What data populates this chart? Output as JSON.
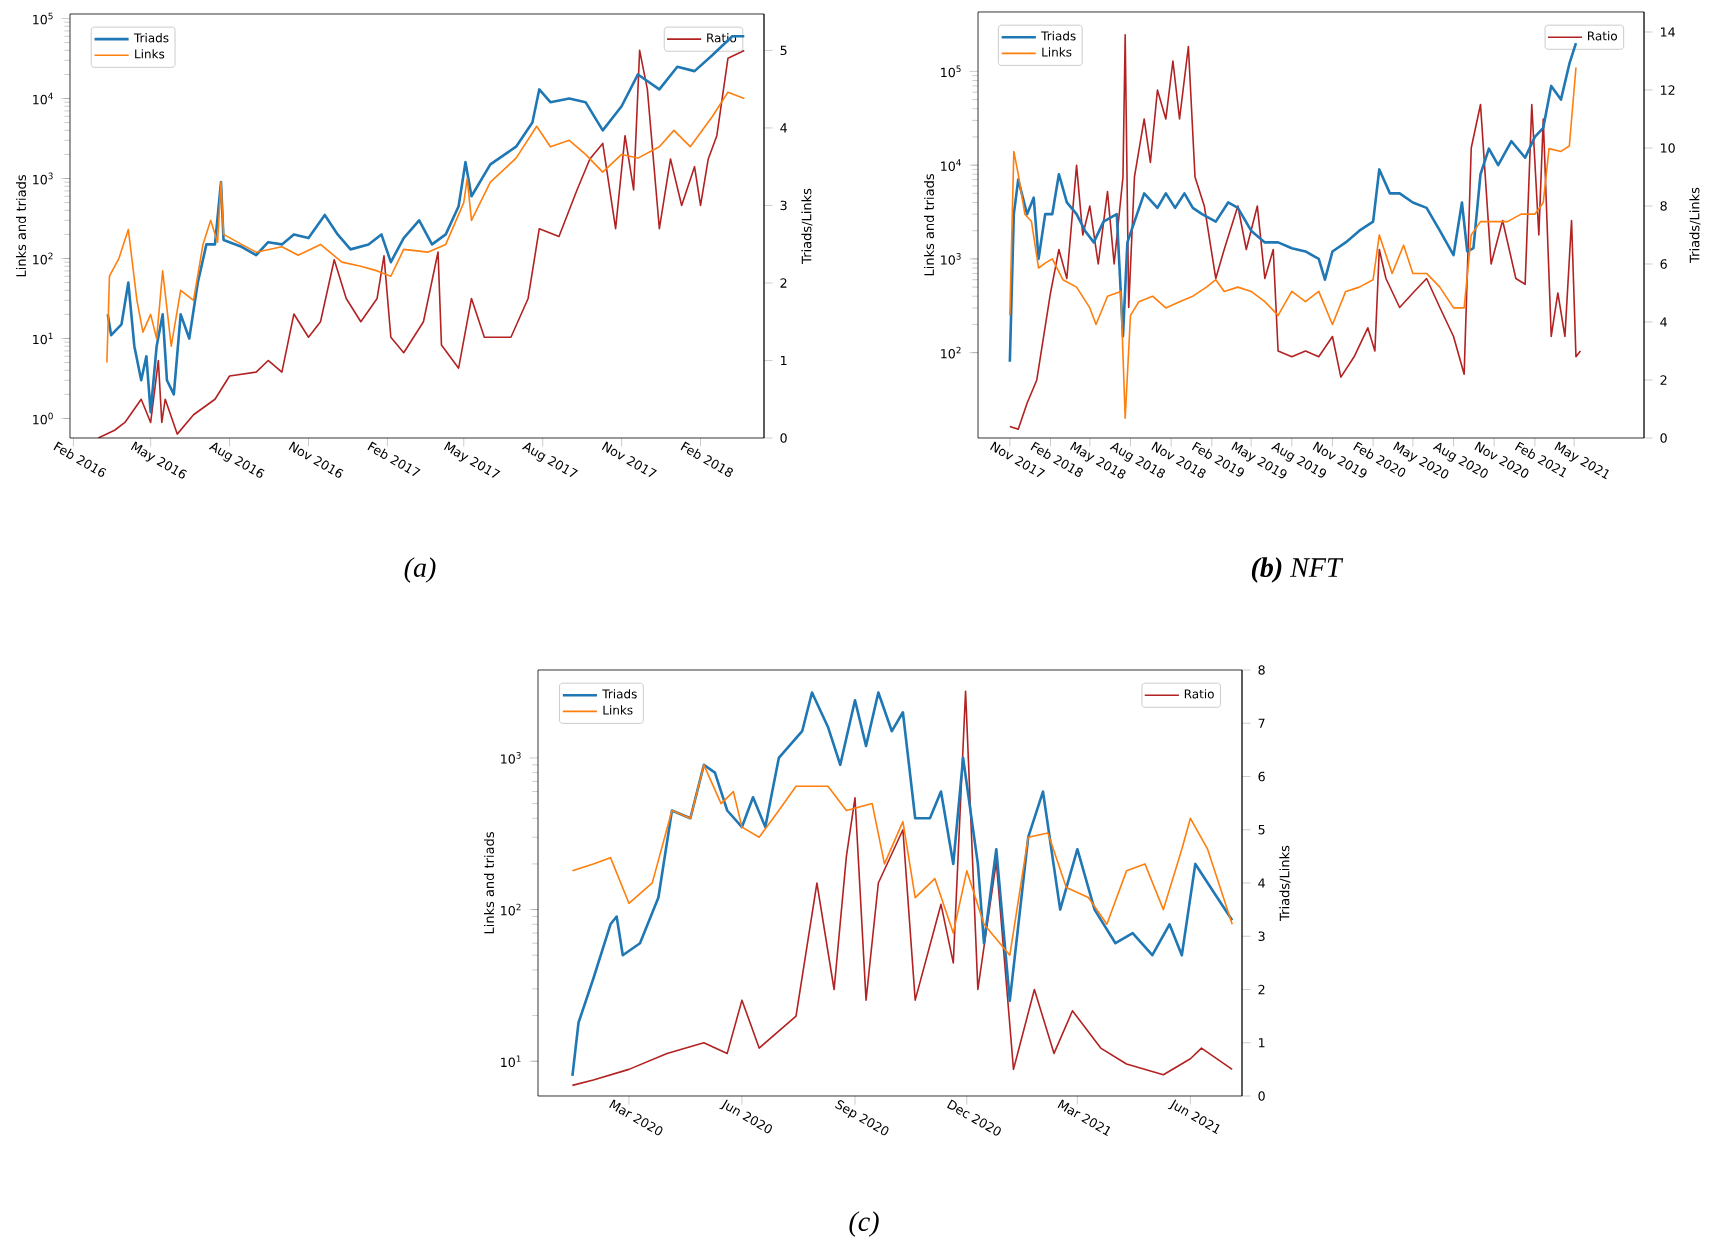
{
  "chart_data": [
    {
      "type": "line",
      "title": "(a)",
      "ylabel": "Links and triads",
      "y2label": "Triads/Links",
      "log": "y",
      "legend": "top left",
      "xlim": [
        "2016-01-28",
        "2018-04-16"
      ],
      "ylim": [
        0.57,
        114000
      ],
      "y2lim": [
        0,
        5.47
      ],
      "xticks": [
        {
          "value": "2016-02-01",
          "label": "Feb 2016"
        },
        {
          "value": "2016-05-01",
          "label": "May 2016"
        },
        {
          "value": "2016-08-01",
          "label": "Aug 2016"
        },
        {
          "value": "2016-11-01",
          "label": "Nov 2016"
        },
        {
          "value": "2017-02-01",
          "label": "Feb 2017"
        },
        {
          "value": "2017-05-01",
          "label": "May 2017"
        },
        {
          "value": "2017-08-01",
          "label": "Aug 2017"
        },
        {
          "value": "2017-11-01",
          "label": "Nov 2017"
        },
        {
          "value": "2018-02-01",
          "label": "Feb 2018"
        }
      ],
      "yticks": [
        {
          "value": 1,
          "label": "10$^{0}$"
        },
        {
          "value": 10,
          "label": "10$^{1}$"
        },
        {
          "value": 100,
          "label": "10$^{2}$"
        },
        {
          "value": 1000,
          "label": "10$^{3}$"
        },
        {
          "value": 10000,
          "label": "10$^{4}$"
        },
        {
          "value": 100000,
          "label": "10$^{5}$"
        }
      ],
      "y2ticks": [
        0,
        1,
        2,
        3,
        4,
        5
      ],
      "series": [
        {
          "name": "Triads",
          "color": "#1f77b4",
          "x": [
            "2016-03-12",
            "2016-03-16",
            "2016-03-28",
            "2016-04-05",
            "2016-04-12",
            "2016-04-20",
            "2016-04-26",
            "2016-05-01",
            "2016-05-08",
            "2016-05-15",
            "2016-05-20",
            "2016-05-28",
            "2016-06-05",
            "2016-06-15",
            "2016-06-25",
            "2016-07-05",
            "2016-07-15",
            "2016-07-22",
            "2016-07-25",
            "2016-08-15",
            "2016-09-01",
            "2016-09-15",
            "2016-10-01",
            "2016-10-15",
            "2016-11-01",
            "2016-11-20",
            "2016-12-05",
            "2016-12-20",
            "2017-01-10",
            "2017-01-25",
            "2017-02-05",
            "2017-02-20",
            "2017-03-10",
            "2017-03-25",
            "2017-04-10",
            "2017-04-25",
            "2017-05-03",
            "2017-05-10",
            "2017-06-01",
            "2017-07-01",
            "2017-07-20",
            "2017-07-28",
            "2017-08-10",
            "2017-09-01",
            "2017-09-20",
            "2017-10-10",
            "2017-11-01",
            "2017-11-20",
            "2017-12-15",
            "2018-01-05",
            "2018-01-25",
            "2018-02-15",
            "2018-03-10",
            "2018-03-24"
          ],
          "values": [
            20,
            11,
            15,
            50,
            8,
            3,
            6,
            1.2,
            8,
            20,
            3,
            2,
            20,
            10,
            50,
            150,
            150,
            900,
            170,
            140,
            110,
            160,
            150,
            200,
            180,
            350,
            200,
            130,
            150,
            200,
            90,
            180,
            300,
            150,
            200,
            450,
            1600,
            600,
            1500,
            2500,
            5000,
            13000,
            9000,
            10000,
            9000,
            4000,
            8000,
            20000,
            13000,
            25000,
            22000,
            35000,
            60000,
            60000
          ]
        },
        {
          "name": "Links",
          "color": "#ff7f0e",
          "x": [
            "2016-03-11",
            "2016-03-14",
            "2016-03-25",
            "2016-04-05",
            "2016-04-15",
            "2016-04-22",
            "2016-05-01",
            "2016-05-08",
            "2016-05-15",
            "2016-05-25",
            "2016-06-05",
            "2016-06-20",
            "2016-07-01",
            "2016-07-10",
            "2016-07-18",
            "2016-07-22",
            "2016-07-25",
            "2016-08-15",
            "2016-09-01",
            "2016-10-01",
            "2016-10-20",
            "2016-11-15",
            "2016-12-10",
            "2017-01-01",
            "2017-01-20",
            "2017-02-05",
            "2017-02-20",
            "2017-03-20",
            "2017-04-10",
            "2017-05-01",
            "2017-05-05",
            "2017-05-10",
            "2017-06-01",
            "2017-07-01",
            "2017-07-25",
            "2017-08-10",
            "2017-09-01",
            "2017-09-20",
            "2017-10-10",
            "2017-11-01",
            "2017-11-20",
            "2017-12-15",
            "2018-01-01",
            "2018-01-20",
            "2018-02-15",
            "2018-03-05",
            "2018-03-24"
          ],
          "values": [
            5,
            60,
            100,
            230,
            30,
            12,
            20,
            10,
            70,
            8,
            40,
            30,
            150,
            300,
            160,
            900,
            200,
            150,
            120,
            140,
            110,
            150,
            90,
            80,
            70,
            60,
            130,
            120,
            150,
            500,
            1000,
            300,
            900,
            1800,
            4500,
            2500,
            3000,
            2000,
            1200,
            2000,
            1800,
            2500,
            4000,
            2500,
            6000,
            12000,
            10000
          ]
        },
        {
          "name": "Ratio",
          "color": "#b22222",
          "axis": "y2",
          "x": [
            "2016-03-01",
            "2016-03-20",
            "2016-04-01",
            "2016-04-20",
            "2016-05-01",
            "2016-05-10",
            "2016-05-14",
            "2016-05-18",
            "2016-06-01",
            "2016-06-20",
            "2016-07-15",
            "2016-08-01",
            "2016-09-01",
            "2016-09-15",
            "2016-10-01",
            "2016-10-15",
            "2016-11-01",
            "2016-11-15",
            "2016-12-01",
            "2016-12-15",
            "2017-01-01",
            "2017-01-20",
            "2017-01-28",
            "2017-02-05",
            "2017-02-20",
            "2017-03-15",
            "2017-04-01",
            "2017-04-05",
            "2017-04-25",
            "2017-05-10",
            "2017-05-25",
            "2017-06-25",
            "2017-07-15",
            "2017-07-28",
            "2017-08-20",
            "2017-09-10",
            "2017-09-25",
            "2017-10-10",
            "2017-10-25",
            "2017-11-05",
            "2017-11-15",
            "2017-11-22",
            "2017-12-01",
            "2017-12-15",
            "2017-12-28",
            "2018-01-10",
            "2018-01-25",
            "2018-02-01",
            "2018-02-10",
            "2018-02-20",
            "2018-03-05",
            "2018-03-24"
          ],
          "values": [
            0,
            0.1,
            0.2,
            0.5,
            0.2,
            1.0,
            0.2,
            0.5,
            0.05,
            0.3,
            0.5,
            0.8,
            0.85,
            1.0,
            0.85,
            1.6,
            1.3,
            1.5,
            2.3,
            1.8,
            1.5,
            1.8,
            2.35,
            1.3,
            1.1,
            1.5,
            2.4,
            1.2,
            0.9,
            1.8,
            1.3,
            1.3,
            1.8,
            2.7,
            2.6,
            3.2,
            3.6,
            3.8,
            2.7,
            3.9,
            3.2,
            5.0,
            4.5,
            2.7,
            3.6,
            3.0,
            3.5,
            3.0,
            3.6,
            3.9,
            4.9,
            5.0
          ]
        }
      ]
    },
    {
      "type": "line",
      "title": "**(b)** NFT",
      "ylabel": "Links and triads",
      "y2label": "Triads/Links",
      "log": "y",
      "legend": "top left",
      "xlim": [
        "2017-08-21",
        "2021-10-06"
      ],
      "ylim": [
        12.3,
        430000
      ],
      "y2lim": [
        0,
        14.69
      ],
      "xticks": [
        {
          "value": "2017-11-01",
          "label": "Nov 2017"
        },
        {
          "value": "2018-02-01",
          "label": "Feb 2018"
        },
        {
          "value": "2018-05-01",
          "label": "May 2018"
        },
        {
          "value": "2018-08-01",
          "label": "Aug 2018"
        },
        {
          "value": "2018-11-01",
          "label": "Nov 2018"
        },
        {
          "value": "2019-02-01",
          "label": "Feb 2019"
        },
        {
          "value": "2019-05-01",
          "label": "May 2019"
        },
        {
          "value": "2019-08-01",
          "label": "Aug 2019"
        },
        {
          "value": "2019-11-01",
          "label": "Nov 2019"
        },
        {
          "value": "2020-02-01",
          "label": "Feb 2020"
        },
        {
          "value": "2020-05-01",
          "label": "May 2020"
        },
        {
          "value": "2020-08-01",
          "label": "Aug 2020"
        },
        {
          "value": "2020-11-01",
          "label": "Nov 2020"
        },
        {
          "value": "2021-02-01",
          "label": "Feb 2021"
        },
        {
          "value": "2021-05-01",
          "label": "May 2021"
        }
      ],
      "yticks": [
        {
          "value": 100,
          "label": "10$^{2}$"
        },
        {
          "value": 1000,
          "label": "10$^{3}$"
        },
        {
          "value": 10000,
          "label": "10$^{4}$"
        },
        {
          "value": 100000,
          "label": "10$^{5}$"
        }
      ],
      "y2ticks": [
        0,
        2,
        4,
        6,
        8,
        10,
        12,
        14
      ],
      "series": [
        {
          "name": "Triads",
          "color": "#1f77b4",
          "x": [
            "2017-11-01",
            "2017-11-10",
            "2017-11-20",
            "2017-12-10",
            "2017-12-25",
            "2018-01-05",
            "2018-01-20",
            "2018-02-05",
            "2018-02-20",
            "2018-03-10",
            "2018-04-01",
            "2018-04-20",
            "2018-05-10",
            "2018-06-01",
            "2018-07-01",
            "2018-07-15",
            "2018-07-25",
            "2018-08-10",
            "2018-09-01",
            "2018-10-01",
            "2018-10-20",
            "2018-11-10",
            "2018-12-01",
            "2018-12-20",
            "2019-01-10",
            "2019-02-10",
            "2019-03-10",
            "2019-04-01",
            "2019-05-01",
            "2019-06-01",
            "2019-07-01",
            "2019-08-01",
            "2019-09-01",
            "2019-10-01",
            "2019-10-15",
            "2019-11-01",
            "2019-12-01",
            "2020-01-01",
            "2020-02-01",
            "2020-02-15",
            "2020-03-10",
            "2020-04-01",
            "2020-05-01",
            "2020-06-01",
            "2020-07-01",
            "2020-08-01",
            "2020-08-20",
            "2020-09-01",
            "2020-09-15",
            "2020-10-01",
            "2020-10-20",
            "2020-11-10",
            "2020-12-10",
            "2021-01-10",
            "2021-02-01",
            "2021-02-20",
            "2021-03-10",
            "2021-04-01",
            "2021-04-20",
            "2021-05-05"
          ],
          "values": [
            80,
            3000,
            7000,
            3000,
            4500,
            1000,
            3000,
            3000,
            8000,
            4000,
            3000,
            2000,
            1500,
            2500,
            3000,
            150,
            1500,
            2500,
            5000,
            3500,
            5000,
            3500,
            5000,
            3500,
            3000,
            2500,
            4000,
            3500,
            2000,
            1500,
            1500,
            1300,
            1200,
            1000,
            600,
            1200,
            1500,
            2000,
            2500,
            9000,
            5000,
            5000,
            4000,
            3500,
            2000,
            1100,
            4000,
            1200,
            1300,
            8000,
            15000,
            10000,
            18000,
            12000,
            20000,
            25000,
            70000,
            50000,
            120000,
            200000
          ]
        },
        {
          "name": "Links",
          "color": "#ff7f0e",
          "x": [
            "2017-11-01",
            "2017-11-10",
            "2017-11-20",
            "2017-12-05",
            "2017-12-20",
            "2018-01-05",
            "2018-01-20",
            "2018-02-05",
            "2018-03-01",
            "2018-04-01",
            "2018-05-01",
            "2018-05-15",
            "2018-06-10",
            "2018-07-10",
            "2018-07-20",
            "2018-08-01",
            "2018-08-20",
            "2018-09-20",
            "2018-10-20",
            "2018-11-20",
            "2018-12-20",
            "2019-01-20",
            "2019-02-10",
            "2019-03-01",
            "2019-04-01",
            "2019-05-01",
            "2019-06-01",
            "2019-07-01",
            "2019-08-01",
            "2019-09-01",
            "2019-10-01",
            "2019-11-01",
            "2019-12-01",
            "2020-01-01",
            "2020-02-01",
            "2020-02-15",
            "2020-03-15",
            "2020-04-10",
            "2020-05-01",
            "2020-06-01",
            "2020-07-01",
            "2020-08-01",
            "2020-08-25",
            "2020-09-10",
            "2020-10-01",
            "2020-11-01",
            "2020-12-01",
            "2021-01-01",
            "2021-02-01",
            "2021-02-20",
            "2021-03-05",
            "2021-04-01",
            "2021-04-20",
            "2021-05-05"
          ],
          "values": [
            250,
            14000,
            8000,
            3000,
            2500,
            800,
            900,
            1000,
            600,
            500,
            300,
            200,
            400,
            450,
            20,
            250,
            350,
            400,
            300,
            350,
            400,
            500,
            600,
            450,
            500,
            450,
            350,
            250,
            450,
            350,
            450,
            200,
            450,
            500,
            600,
            1800,
            700,
            1400,
            700,
            700,
            500,
            300,
            300,
            1800,
            2500,
            2500,
            2500,
            3000,
            3000,
            4000,
            15000,
            14000,
            16000,
            110000
          ]
        },
        {
          "name": "Ratio",
          "color": "#b22222",
          "axis": "y2",
          "x": [
            "2017-11-01",
            "2017-11-20",
            "2017-12-10",
            "2018-01-01",
            "2018-02-01",
            "2018-02-20",
            "2018-03-10",
            "2018-04-01",
            "2018-04-15",
            "2018-05-01",
            "2018-05-20",
            "2018-06-10",
            "2018-06-25",
            "2018-07-15",
            "2018-07-20",
            "2018-07-28",
            "2018-08-10",
            "2018-09-01",
            "2018-09-15",
            "2018-10-01",
            "2018-10-20",
            "2018-11-05",
            "2018-11-20",
            "2018-12-10",
            "2018-12-25",
            "2019-01-15",
            "2019-02-10",
            "2019-03-01",
            "2019-04-01",
            "2019-04-20",
            "2019-05-15",
            "2019-06-01",
            "2019-06-20",
            "2019-07-01",
            "2019-08-01",
            "2019-09-01",
            "2019-10-01",
            "2019-11-01",
            "2019-11-20",
            "2019-12-20",
            "2020-01-20",
            "2020-02-05",
            "2020-02-15",
            "2020-03-01",
            "2020-04-01",
            "2020-05-01",
            "2020-06-01",
            "2020-07-01",
            "2020-08-01",
            "2020-08-25",
            "2020-09-10",
            "2020-10-01",
            "2020-10-25",
            "2020-11-20",
            "2020-12-20",
            "2021-01-10",
            "2021-01-25",
            "2021-02-10",
            "2021-02-20",
            "2021-03-10",
            "2021-03-25",
            "2021-04-10",
            "2021-04-25",
            "2021-05-05",
            "2021-05-15"
          ],
          "values": [
            0.4,
            0.3,
            1.2,
            2.0,
            5.0,
            6.5,
            5.5,
            9.4,
            7.0,
            8.0,
            6.0,
            8.5,
            6.0,
            9.0,
            13.9,
            4.5,
            9.0,
            11.0,
            9.5,
            12.0,
            11.0,
            13.0,
            11.0,
            13.5,
            9.0,
            8.0,
            5.5,
            6.5,
            8.0,
            6.5,
            8.0,
            5.5,
            6.5,
            3.0,
            2.8,
            3.0,
            2.8,
            3.5,
            2.1,
            2.8,
            3.8,
            3.0,
            6.5,
            5.5,
            4.5,
            5.0,
            5.5,
            4.5,
            3.5,
            2.2,
            10.0,
            11.5,
            6.0,
            7.5,
            5.5,
            5.3,
            11.5,
            7.0,
            11.0,
            3.5,
            5.0,
            3.5,
            7.5,
            2.8,
            3.0
          ]
        }
      ]
    },
    {
      "type": "line",
      "title": "(c)",
      "ylabel": "Links and triads",
      "y2label": "Triads/Links",
      "log": "y",
      "legend": "top left",
      "xlim": [
        "2019-12-18",
        "2021-07-13"
      ],
      "ylim": [
        5.9,
        3800
      ],
      "y2lim": [
        0,
        8
      ],
      "xticks": [
        {
          "value": "2020-03-01",
          "label": "Mar 2020"
        },
        {
          "value": "2020-06-01",
          "label": "Jun 2020"
        },
        {
          "value": "2020-09-01",
          "label": "Sep 2020"
        },
        {
          "value": "2020-12-01",
          "label": "Dec 2020"
        },
        {
          "value": "2021-03-01",
          "label": "Mar 2021"
        },
        {
          "value": "2021-06-01",
          "label": "Jun 2021"
        }
      ],
      "yticks": [
        {
          "value": 10,
          "label": "10$^{1}$"
        },
        {
          "value": 100,
          "label": "10$^{2}$"
        },
        {
          "value": 1000,
          "label": "10$^{3}$"
        }
      ],
      "y2ticks": [
        0,
        1,
        2,
        3,
        4,
        5,
        6,
        7,
        8
      ],
      "series": [
        {
          "name": "Triads",
          "color": "#1f77b4",
          "x": [
            "2020-01-15",
            "2020-01-20",
            "2020-02-01",
            "2020-02-15",
            "2020-02-20",
            "2020-02-25",
            "2020-03-10",
            "2020-03-25",
            "2020-04-05",
            "2020-04-20",
            "2020-05-01",
            "2020-05-10",
            "2020-05-20",
            "2020-06-01",
            "2020-06-10",
            "2020-06-20",
            "2020-07-01",
            "2020-07-20",
            "2020-07-28",
            "2020-08-10",
            "2020-08-20",
            "2020-09-01",
            "2020-09-10",
            "2020-09-20",
            "2020-10-01",
            "2020-10-10",
            "2020-10-20",
            "2020-11-01",
            "2020-11-10",
            "2020-11-20",
            "2020-11-28",
            "2020-12-10",
            "2020-12-15",
            "2020-12-25",
            "2021-01-05",
            "2021-01-20",
            "2021-02-01",
            "2021-02-15",
            "2021-03-01",
            "2021-03-15",
            "2021-04-01",
            "2021-04-15",
            "2021-05-01",
            "2021-05-15",
            "2021-05-25",
            "2021-06-05",
            "2021-06-20",
            "2021-07-05"
          ],
          "values": [
            8,
            18,
            35,
            80,
            90,
            50,
            60,
            120,
            450,
            400,
            900,
            800,
            450,
            350,
            550,
            350,
            1000,
            1500,
            2700,
            1600,
            900,
            2400,
            1200,
            2700,
            1500,
            2000,
            400,
            400,
            600,
            200,
            1000,
            200,
            60,
            250,
            25,
            300,
            600,
            100,
            250,
            100,
            60,
            70,
            50,
            80,
            50,
            200,
            130,
            85
          ]
        },
        {
          "name": "Links",
          "color": "#ff7f0e",
          "x": [
            "2020-01-15",
            "2020-02-01",
            "2020-02-15",
            "2020-03-01",
            "2020-03-20",
            "2020-04-05",
            "2020-04-20",
            "2020-05-01",
            "2020-05-15",
            "2020-05-25",
            "2020-06-01",
            "2020-06-15",
            "2020-07-01",
            "2020-07-15",
            "2020-08-10",
            "2020-08-25",
            "2020-09-15",
            "2020-09-25",
            "2020-10-10",
            "2020-10-20",
            "2020-11-05",
            "2020-11-20",
            "2020-12-01",
            "2020-12-15",
            "2021-01-05",
            "2021-01-20",
            "2021-02-05",
            "2021-02-20",
            "2021-03-10",
            "2021-03-25",
            "2021-04-10",
            "2021-04-25",
            "2021-05-10",
            "2021-05-25",
            "2021-06-01",
            "2021-06-15",
            "2021-07-05"
          ],
          "values": [
            180,
            200,
            220,
            110,
            150,
            450,
            400,
            900,
            500,
            600,
            350,
            300,
            450,
            650,
            650,
            450,
            500,
            200,
            380,
            120,
            160,
            70,
            180,
            80,
            50,
            300,
            320,
            140,
            120,
            80,
            180,
            200,
            100,
            250,
            400,
            250,
            80
          ]
        },
        {
          "name": "Ratio",
          "color": "#b22222",
          "axis": "y2",
          "x": [
            "2020-01-15",
            "2020-02-01",
            "2020-03-01",
            "2020-04-01",
            "2020-05-01",
            "2020-05-20",
            "2020-06-01",
            "2020-06-15",
            "2020-07-15",
            "2020-08-01",
            "2020-08-15",
            "2020-08-25",
            "2020-09-01",
            "2020-09-10",
            "2020-09-20",
            "2020-10-10",
            "2020-10-20",
            "2020-11-10",
            "2020-11-20",
            "2020-11-30",
            "2020-12-10",
            "2020-12-25",
            "2021-01-08",
            "2021-01-25",
            "2021-02-10",
            "2021-02-25",
            "2021-03-20",
            "2021-04-10",
            "2021-05-10",
            "2021-06-01",
            "2021-06-10",
            "2021-07-05"
          ],
          "values": [
            0.2,
            0.3,
            0.5,
            0.8,
            1.0,
            0.8,
            1.8,
            0.9,
            1.5,
            4.0,
            2.0,
            4.5,
            5.6,
            1.8,
            4.0,
            5.0,
            1.8,
            3.6,
            2.5,
            7.6,
            2.0,
            4.4,
            0.5,
            2.0,
            0.8,
            1.6,
            0.9,
            0.6,
            0.4,
            0.7,
            0.9,
            0.5
          ]
        }
      ]
    }
  ]
}
